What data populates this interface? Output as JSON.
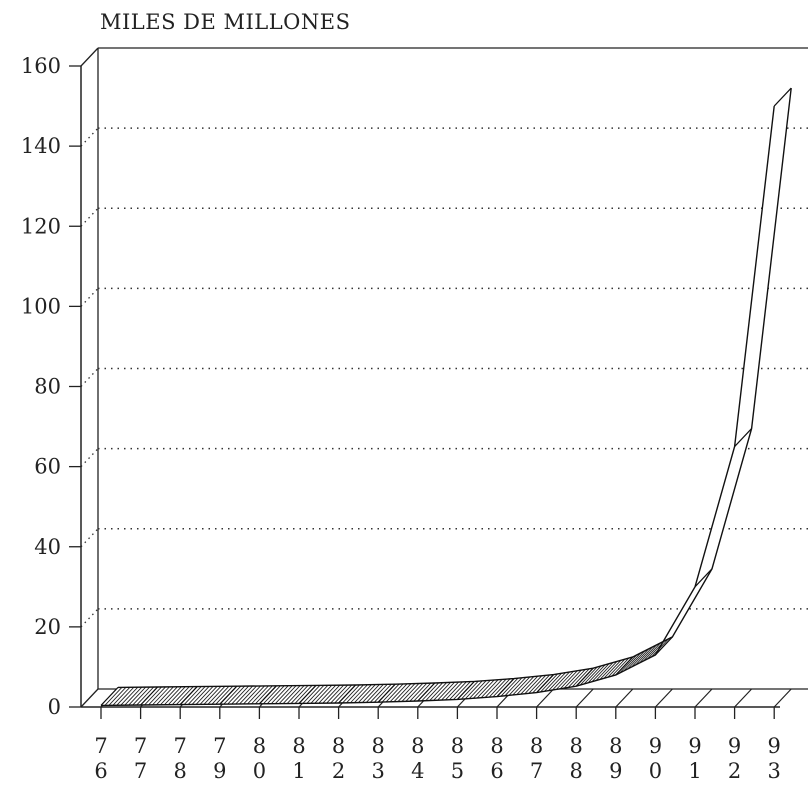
{
  "chart_data": {
    "type": "line",
    "title": "",
    "ylabel": "MILES DE MILLONES",
    "xlabel": "",
    "ylim": [
      0,
      160
    ],
    "yticks": [
      "0",
      "20",
      "40",
      "60",
      "80",
      "100",
      "120",
      "140",
      "160"
    ],
    "x": [
      "76",
      "77",
      "78",
      "79",
      "80",
      "81",
      "82",
      "83",
      "84",
      "85",
      "86",
      "87",
      "88",
      "89",
      "90",
      "91",
      "92",
      "93"
    ],
    "values": [
      0.4,
      0.5,
      0.6,
      0.7,
      0.8,
      0.9,
      1.0,
      1.2,
      1.5,
      1.9,
      2.6,
      3.6,
      5.2,
      8,
      13,
      30,
      65,
      150
    ],
    "grid": true,
    "style": "3d-ribbon"
  }
}
